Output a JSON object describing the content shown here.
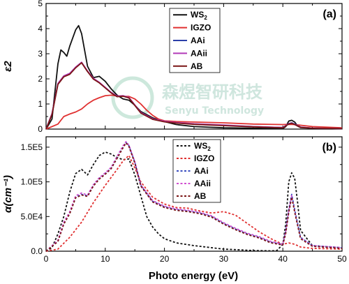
{
  "figure": {
    "watermark": {
      "line1": "森煜智研科技",
      "line2": "Senyu Technology"
    },
    "x_axis_title": "Photo energy (eV)"
  },
  "chart_data": [
    {
      "type": "line",
      "panel_label": "(a)",
      "ylabel": "ε2",
      "ylim": [
        0,
        5
      ],
      "yticks": [
        "0",
        "1",
        "2",
        "3",
        "4",
        "5"
      ],
      "xlim": [
        0,
        50
      ],
      "xticks": [],
      "grid": false,
      "legend_position": "top-center",
      "line_style": "solid",
      "series": [
        {
          "name": "WS2",
          "color": "#111111",
          "x": [
            0,
            1,
            2,
            2.5,
            3,
            3.5,
            4,
            5,
            5.5,
            6,
            7,
            8,
            9,
            10,
            11,
            12,
            13,
            14,
            15,
            16,
            18,
            20,
            22,
            25,
            30,
            40,
            40.5,
            41,
            41.5,
            42,
            42.5,
            43,
            45,
            50
          ],
          "y": [
            0,
            0.4,
            2.6,
            3.15,
            3.05,
            2.9,
            3.3,
            3.95,
            4.12,
            3.8,
            2.5,
            2.05,
            2.1,
            1.9,
            1.6,
            1.35,
            1.2,
            1.15,
            0.95,
            0.7,
            0.45,
            0.3,
            0.18,
            0.1,
            0.05,
            0.02,
            0.1,
            0.32,
            0.35,
            0.28,
            0.12,
            0.06,
            0.03,
            0.02
          ]
        },
        {
          "name": "IGZO",
          "color": "#e03030",
          "x": [
            0,
            2,
            3,
            4,
            5,
            6,
            7,
            8,
            9,
            10,
            11,
            12,
            13,
            14,
            15,
            16,
            17,
            18,
            19,
            20,
            22,
            25,
            30,
            35,
            40,
            41,
            42,
            45,
            50
          ],
          "y": [
            0,
            0.2,
            0.5,
            0.6,
            0.68,
            0.8,
            1.0,
            1.15,
            1.25,
            1.33,
            1.35,
            1.32,
            1.3,
            1.3,
            1.2,
            1.0,
            0.75,
            0.55,
            0.4,
            0.33,
            0.3,
            0.28,
            0.25,
            0.2,
            0.18,
            0.19,
            0.18,
            0.1,
            0.05
          ]
        },
        {
          "name": "AAi",
          "color": "#2b3fa8",
          "x": [
            0,
            1,
            2,
            3,
            4,
            5,
            6,
            7,
            8,
            9,
            10,
            11,
            12,
            13,
            14,
            15,
            16,
            18,
            20,
            22,
            25,
            30,
            35,
            40,
            41,
            41.5,
            42,
            43,
            45,
            50
          ],
          "y": [
            0,
            0.6,
            1.8,
            2.1,
            2.2,
            2.45,
            2.65,
            2.3,
            2.0,
            1.85,
            1.65,
            1.45,
            1.3,
            1.32,
            1.25,
            0.95,
            0.65,
            0.4,
            0.3,
            0.25,
            0.2,
            0.15,
            0.1,
            0.06,
            0.22,
            0.25,
            0.2,
            0.08,
            0.04,
            0.02
          ]
        },
        {
          "name": "AAii",
          "color": "#b23ab8",
          "x": [
            0,
            1,
            2,
            3,
            4,
            5,
            6,
            7,
            8,
            9,
            10,
            11,
            12,
            13,
            14,
            15,
            16,
            18,
            20,
            22,
            25,
            30,
            35,
            40,
            41,
            41.5,
            42,
            43,
            45,
            50
          ],
          "y": [
            0,
            0.62,
            1.82,
            2.12,
            2.22,
            2.47,
            2.66,
            2.31,
            2.02,
            1.86,
            1.66,
            1.46,
            1.31,
            1.33,
            1.26,
            0.96,
            0.66,
            0.41,
            0.31,
            0.26,
            0.21,
            0.16,
            0.1,
            0.06,
            0.21,
            0.24,
            0.19,
            0.08,
            0.04,
            0.02
          ]
        },
        {
          "name": "AB",
          "color": "#7a1515",
          "x": [
            0,
            1,
            2,
            3,
            4,
            5,
            6,
            7,
            8,
            9,
            10,
            11,
            12,
            13,
            14,
            15,
            16,
            18,
            20,
            22,
            25,
            30,
            35,
            40,
            41,
            41.5,
            42,
            43,
            45,
            50
          ],
          "y": [
            0,
            0.58,
            1.78,
            2.08,
            2.18,
            2.44,
            2.64,
            2.29,
            1.99,
            1.84,
            1.64,
            1.44,
            1.29,
            1.31,
            1.24,
            0.94,
            0.64,
            0.39,
            0.29,
            0.24,
            0.19,
            0.14,
            0.09,
            0.05,
            0.2,
            0.23,
            0.18,
            0.07,
            0.04,
            0.02
          ]
        }
      ]
    },
    {
      "type": "line",
      "panel_label": "(b)",
      "ylabel": "α(cm⁻¹)",
      "xlabel": "Photo energy (eV)",
      "ylim": [
        0,
        165000
      ],
      "yticks": [
        {
          "value": 0,
          "label": "0.0"
        },
        {
          "value": 50000,
          "label": "5.0E4"
        },
        {
          "value": 100000,
          "label": "1.0E5"
        },
        {
          "value": 150000,
          "label": "1.5E5"
        }
      ],
      "xlim": [
        0,
        50
      ],
      "xticks": [
        "0",
        "10",
        "20",
        "30",
        "40",
        "50"
      ],
      "grid": false,
      "legend_position": "top-center",
      "line_style": "dashed",
      "series": [
        {
          "name": "WS2",
          "color": "#111111",
          "x": [
            0,
            1,
            2,
            3,
            4,
            5,
            6,
            7,
            8,
            9,
            10,
            11,
            12,
            13,
            14,
            15,
            16,
            17,
            18,
            19,
            20,
            22,
            25,
            30,
            35,
            38,
            39,
            40,
            40.5,
            41,
            41.5,
            42,
            42.5,
            43,
            45,
            50
          ],
          "y": [
            0,
            5000,
            25000,
            50000,
            85000,
            112000,
            118000,
            110000,
            125000,
            138000,
            143000,
            140000,
            135000,
            132000,
            133000,
            110000,
            80000,
            50000,
            35000,
            25000,
            18000,
            12000,
            8000,
            3000,
            1000,
            500,
            1000,
            10000,
            40000,
            100000,
            113000,
            105000,
            70000,
            30000,
            8000,
            5000
          ]
        },
        {
          "name": "IGZO",
          "color": "#e03030",
          "x": [
            0,
            2,
            4,
            6,
            8,
            10,
            12,
            13,
            14,
            15,
            16,
            18,
            20,
            22,
            24,
            26,
            28,
            30,
            32,
            34,
            36,
            38,
            40,
            41,
            42,
            43,
            45,
            50
          ],
          "y": [
            0,
            3000,
            20000,
            42000,
            70000,
            95000,
            118000,
            130000,
            138000,
            120000,
            100000,
            78000,
            68000,
            63000,
            62000,
            58000,
            55000,
            57000,
            52000,
            40000,
            28000,
            18000,
            10000,
            12000,
            10000,
            6000,
            4000,
            3000
          ]
        },
        {
          "name": "AAi",
          "color": "#3a4ec0",
          "x": [
            0,
            2,
            3,
            4,
            5,
            6,
            7,
            8,
            9,
            10,
            11,
            12,
            13,
            13.5,
            14,
            15,
            16,
            18,
            20,
            22,
            24,
            26,
            28,
            30,
            32,
            34,
            36,
            38,
            40,
            40.5,
            41,
            41.5,
            42,
            43,
            45,
            50
          ],
          "y": [
            0,
            15000,
            40000,
            55000,
            78000,
            82000,
            80000,
            95000,
            105000,
            112000,
            120000,
            135000,
            150000,
            157000,
            152000,
            128000,
            95000,
            72000,
            64000,
            60000,
            58000,
            55000,
            50000,
            40000,
            32000,
            25000,
            20000,
            13000,
            10000,
            30000,
            60000,
            82000,
            60000,
            20000,
            8000,
            5000
          ]
        },
        {
          "name": "AAii",
          "color": "#d050d0",
          "x": [
            0,
            2,
            3,
            4,
            5,
            6,
            7,
            8,
            9,
            10,
            11,
            12,
            13,
            13.5,
            14,
            15,
            16,
            18,
            20,
            22,
            24,
            26,
            28,
            30,
            32,
            34,
            36,
            38,
            40,
            40.5,
            41,
            41.5,
            42,
            43,
            45,
            50
          ],
          "y": [
            0,
            16000,
            42000,
            57000,
            80000,
            84000,
            81000,
            96000,
            106000,
            113000,
            121000,
            137000,
            152000,
            158000,
            153000,
            129000,
            96000,
            73000,
            65000,
            61000,
            59000,
            56000,
            51000,
            41000,
            33000,
            26000,
            21000,
            14000,
            10000,
            28000,
            58000,
            80000,
            58000,
            19000,
            8000,
            5000
          ]
        },
        {
          "name": "AB",
          "color": "#7a1515",
          "x": [
            0,
            2,
            3,
            4,
            5,
            6,
            7,
            8,
            9,
            10,
            11,
            12,
            13,
            13.5,
            14,
            15,
            16,
            18,
            20,
            22,
            24,
            26,
            28,
            30,
            32,
            34,
            36,
            38,
            40,
            40.5,
            41,
            41.5,
            42,
            43,
            45,
            50
          ],
          "y": [
            0,
            14000,
            39000,
            54000,
            77000,
            81000,
            79000,
            94000,
            104000,
            111000,
            119000,
            134000,
            149000,
            156000,
            151000,
            127000,
            94000,
            71000,
            63000,
            59000,
            57000,
            54000,
            49000,
            39000,
            31000,
            24000,
            19000,
            12000,
            9000,
            26000,
            56000,
            78000,
            56000,
            18000,
            7000,
            4000
          ]
        }
      ]
    }
  ]
}
